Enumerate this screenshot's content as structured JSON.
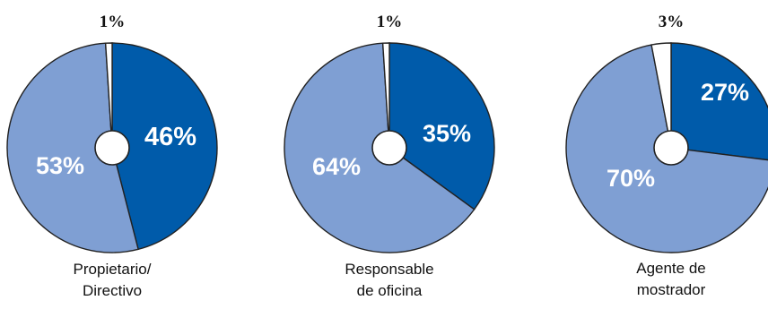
{
  "colors": {
    "series_dark": "#005baa",
    "series_light": "#7f9fd3",
    "series_small": "#ffffff",
    "stroke": "#222222"
  },
  "chart_data": [
    {
      "type": "pie",
      "category": [
        "Propietario/",
        "Directivo"
      ],
      "slices": [
        {
          "value": 46,
          "label": "46%",
          "color": "#005baa"
        },
        {
          "value": 53,
          "label": "53%",
          "color": "#7f9fd3"
        },
        {
          "value": 1,
          "label": "1%",
          "color": "#ffffff"
        }
      ]
    },
    {
      "type": "pie",
      "category": [
        "Responsable",
        "de oficina"
      ],
      "slices": [
        {
          "value": 35,
          "label": "35%",
          "color": "#005baa"
        },
        {
          "value": 64,
          "label": "64%",
          "color": "#7f9fd3"
        },
        {
          "value": 1,
          "label": "1%",
          "color": "#ffffff"
        }
      ]
    },
    {
      "type": "pie",
      "category": [
        "Agente de",
        "mostrador"
      ],
      "slices": [
        {
          "value": 27,
          "label": "27%",
          "color": "#005baa"
        },
        {
          "value": 70,
          "label": "70%",
          "color": "#7f9fd3"
        },
        {
          "value": 3,
          "label": "3%",
          "color": "#ffffff"
        }
      ]
    }
  ]
}
